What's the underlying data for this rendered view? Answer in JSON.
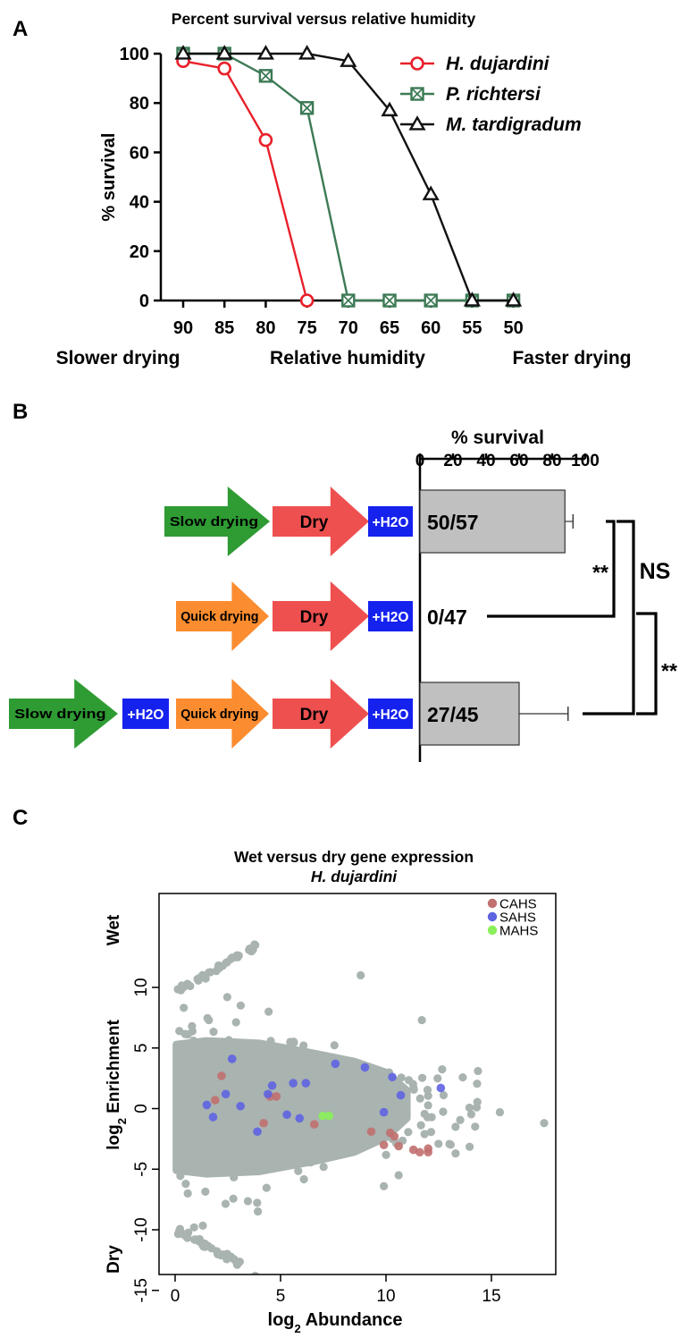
{
  "panels": {
    "a": {
      "letter": "A"
    },
    "b": {
      "letter": "B"
    },
    "c": {
      "letter": "C"
    }
  },
  "chart_data": [
    {
      "type": "line",
      "title": "Percent survival versus relative humidity",
      "xlabel": "Relative humidity",
      "ylabel": "% survival",
      "x_left_note": "Slower drying",
      "x_right_note": "Faster drying",
      "x": [
        90,
        85,
        80,
        75,
        70,
        65,
        60,
        55,
        50
      ],
      "x_ticks": [
        "90",
        "85",
        "80",
        "75",
        "70",
        "65",
        "60",
        "55",
        "50"
      ],
      "y_ticks": [
        "0",
        "20",
        "40",
        "60",
        "80",
        "100"
      ],
      "ylim": [
        0,
        100
      ],
      "x_reversed": true,
      "legend_position": "top-right",
      "series": [
        {
          "name": "H. dujardini",
          "color": "#e8202a",
          "marker": "circle",
          "values": [
            97,
            94,
            65,
            0,
            null,
            null,
            null,
            null,
            null
          ]
        },
        {
          "name": "P. richtersi",
          "color": "#3d7a55",
          "marker": "crossed-square",
          "values": [
            100,
            100,
            91,
            78,
            0,
            0,
            0,
            0,
            0
          ]
        },
        {
          "name": "M. tardigradum",
          "color": "#111111",
          "marker": "triangle",
          "values": [
            100,
            100,
            100,
            100,
            97,
            77,
            43,
            0,
            0
          ]
        }
      ]
    },
    {
      "type": "bar",
      "orientation": "horizontal",
      "xlabel": "% survival",
      "x_ticks": [
        "0",
        "20",
        "40",
        "60",
        "80",
        "100"
      ],
      "xlim": [
        0,
        100
      ],
      "treatments": [
        {
          "steps": [
            {
              "label": "Slow drying",
              "kind": "arrow",
              "color": "#2e9b33"
            },
            {
              "label": "Dry",
              "kind": "arrow",
              "color": "#ee5050"
            },
            {
              "label": "+H2O",
              "kind": "box",
              "color": "#1522ee"
            }
          ],
          "fraction": "50/57",
          "value": 87.7,
          "error": 4.9
        },
        {
          "steps": [
            {
              "label": "Quick drying",
              "kind": "arrow",
              "color": "#fb8c2f"
            },
            {
              "label": "Dry",
              "kind": "arrow",
              "color": "#ee5050"
            },
            {
              "label": "+H2O",
              "kind": "box",
              "color": "#1522ee"
            }
          ],
          "fraction": "0/47",
          "value": 0,
          "error": 0
        },
        {
          "steps": [
            {
              "label": "Slow drying",
              "kind": "arrow",
              "color": "#2e9b33"
            },
            {
              "label": "+H2O",
              "kind": "box",
              "color": "#1522ee"
            },
            {
              "label": "Quick drying",
              "kind": "arrow",
              "color": "#fb8c2f"
            },
            {
              "label": "Dry",
              "kind": "arrow",
              "color": "#ee5050"
            },
            {
              "label": "+H2O",
              "kind": "box",
              "color": "#1522ee"
            }
          ],
          "fraction": "27/45",
          "value": 60,
          "error": 29.6
        }
      ],
      "significance": [
        {
          "between": [
            0,
            1
          ],
          "label": "**"
        },
        {
          "between": [
            0,
            2
          ],
          "label": "NS"
        },
        {
          "between": [
            1,
            2
          ],
          "label": "**"
        }
      ]
    },
    {
      "type": "scatter",
      "title": "Wet versus dry gene expression",
      "subtitle": "H. dujardini",
      "xlabel_base": "log",
      "xlabel_sub": "2",
      "xlabel_rest": " Abundance",
      "ylabel_base": "log",
      "ylabel_sub": "2",
      "ylabel_rest": " Enrichment",
      "y_top_note": "Wet",
      "y_bottom_note": "Dry",
      "xlim": [
        -1,
        18
      ],
      "ylim": [
        -15,
        14
      ],
      "x_ticks": [
        "0",
        "5",
        "10",
        "15"
      ],
      "y_ticks": [
        "10",
        "5",
        "0",
        "-5",
        "-10",
        "-15"
      ],
      "legend_position": "top-right",
      "background_color": "#a9b3b0",
      "groups": [
        {
          "name": "CAHS",
          "color": "#c0706f",
          "points": [
            [
              1.9,
              0.7
            ],
            [
              2.2,
              2.7
            ],
            [
              4.2,
              -1.2
            ],
            [
              4.5,
              1.0
            ],
            [
              4.8,
              1.0
            ],
            [
              6.6,
              -1.3
            ],
            [
              9.3,
              -1.9
            ],
            [
              9.9,
              -3.0
            ],
            [
              10.2,
              -2.0
            ],
            [
              10.4,
              -2.3
            ],
            [
              10.6,
              -3.1
            ],
            [
              11.3,
              -3.4
            ],
            [
              11.6,
              -3.6
            ],
            [
              12.0,
              -3.3
            ],
            [
              12.0,
              -3.6
            ]
          ]
        },
        {
          "name": "SAHS",
          "color": "#5e63e2",
          "points": [
            [
              1.5,
              0.3
            ],
            [
              1.8,
              -0.7
            ],
            [
              2.4,
              1.2
            ],
            [
              2.7,
              4.1
            ],
            [
              3.1,
              0.2
            ],
            [
              3.9,
              -1.9
            ],
            [
              4.4,
              1.2
            ],
            [
              4.6,
              1.9
            ],
            [
              5.3,
              -0.5
            ],
            [
              5.6,
              2.1
            ],
            [
              5.9,
              -0.8
            ],
            [
              6.2,
              2.1
            ],
            [
              7.6,
              3.7
            ],
            [
              9.0,
              3.4
            ],
            [
              9.9,
              -0.3
            ],
            [
              10.3,
              2.6
            ],
            [
              10.7,
              1.1
            ],
            [
              12.6,
              1.7
            ]
          ]
        },
        {
          "name": "MAHS",
          "color": "#8af05a",
          "points": [
            [
              7.0,
              -0.6
            ],
            [
              7.3,
              -0.6
            ]
          ]
        }
      ]
    }
  ]
}
